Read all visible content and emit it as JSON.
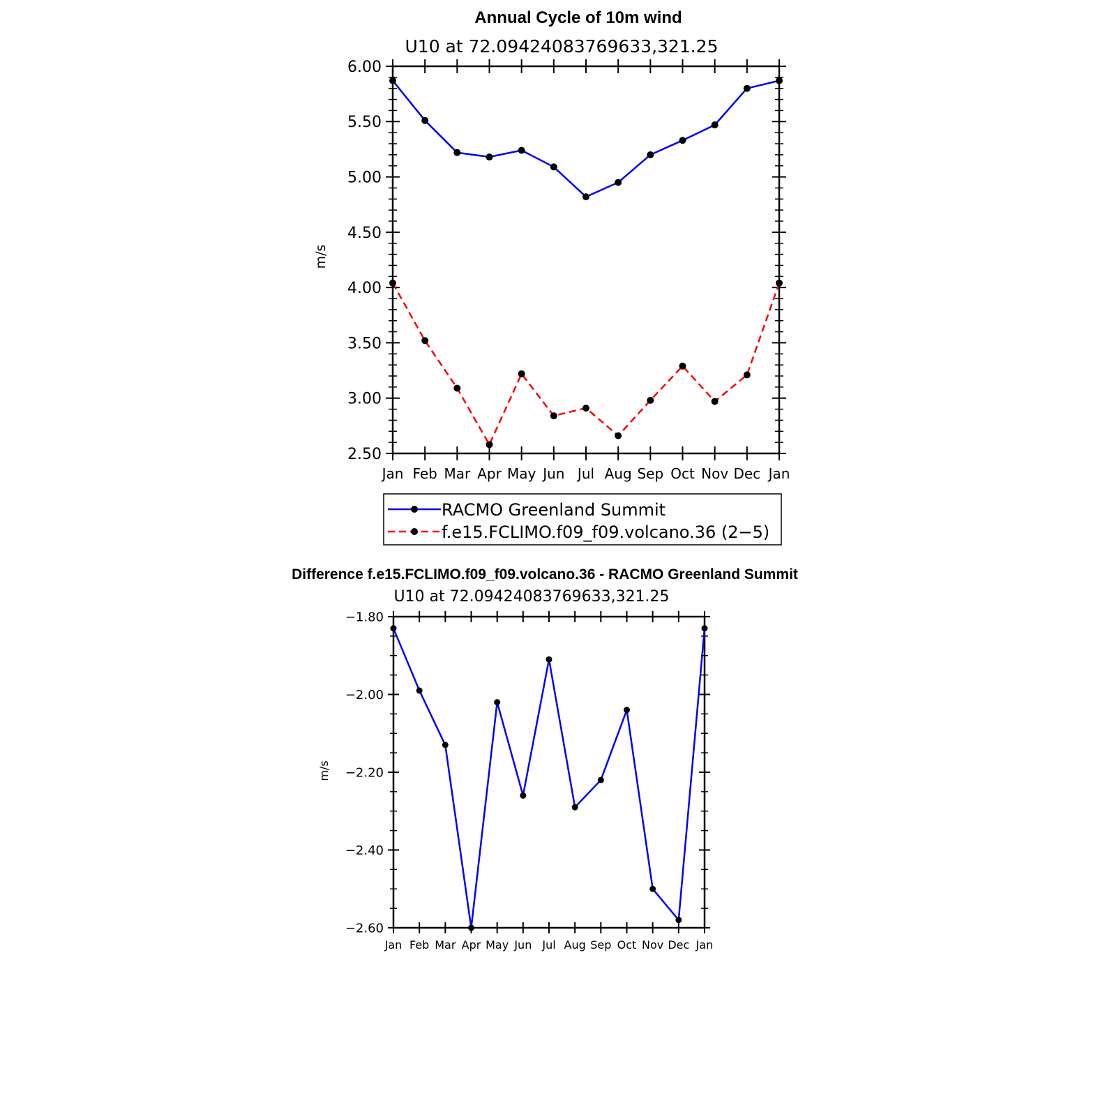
{
  "chart_data": [
    {
      "type": "line",
      "title": "Annual Cycle of 10m wind",
      "subtitle": "U10 at 72.09424083769633,321.25",
      "ylabel": "m/s",
      "xlabel": "",
      "categories": [
        "Jan",
        "Feb",
        "Mar",
        "Apr",
        "May",
        "Jun",
        "Jul",
        "Aug",
        "Sep",
        "Oct",
        "Nov",
        "Dec",
        "Jan"
      ],
      "ylim": [
        2.5,
        6.0
      ],
      "yticks": [
        "2.50",
        "3.00",
        "3.50",
        "4.00",
        "4.50",
        "5.00",
        "5.50",
        "6.00"
      ],
      "yticks_values": [
        2.5,
        3.0,
        3.5,
        4.0,
        4.5,
        5.0,
        5.5,
        6.0
      ],
      "legend_placement": "below",
      "series": [
        {
          "name": "RACMO Greenland Summit",
          "color": "#0000ff",
          "style": "solid",
          "values": [
            5.87,
            5.51,
            5.22,
            5.18,
            5.24,
            5.09,
            4.82,
            4.95,
            5.2,
            5.33,
            5.47,
            5.8,
            5.87
          ]
        },
        {
          "name": "f.e15.FCLIMO.f09_f09.volcano.36 (2−5)",
          "color": "#ff0000",
          "style": "dashed",
          "values": [
            4.04,
            3.52,
            3.09,
            2.58,
            3.22,
            2.84,
            2.91,
            2.66,
            2.98,
            3.29,
            2.97,
            3.21,
            4.04
          ]
        }
      ]
    },
    {
      "type": "line",
      "title": "Difference f.e15.FCLIMO.f09_f09.volcano.36 - RACMO Greenland Summit",
      "subtitle": "U10 at 72.09424083769633,321.25",
      "ylabel": "m/s",
      "xlabel": "",
      "categories": [
        "Jan",
        "Feb",
        "Mar",
        "Apr",
        "May",
        "Jun",
        "Jul",
        "Aug",
        "Sep",
        "Oct",
        "Nov",
        "Dec",
        "Jan"
      ],
      "ylim": [
        -2.6,
        -1.8
      ],
      "yticks": [
        "−2.60",
        "−2.40",
        "−2.20",
        "−2.00",
        "−1.80"
      ],
      "yticks_values": [
        -2.6,
        -2.4,
        -2.2,
        -2.0,
        -1.8
      ],
      "series": [
        {
          "color": "#0000ff",
          "style": "solid",
          "values": [
            -1.83,
            -1.99,
            -2.13,
            -2.6,
            -2.02,
            -2.26,
            -1.91,
            -2.29,
            -2.22,
            -2.04,
            -2.5,
            -2.58,
            -1.83
          ]
        }
      ]
    }
  ]
}
